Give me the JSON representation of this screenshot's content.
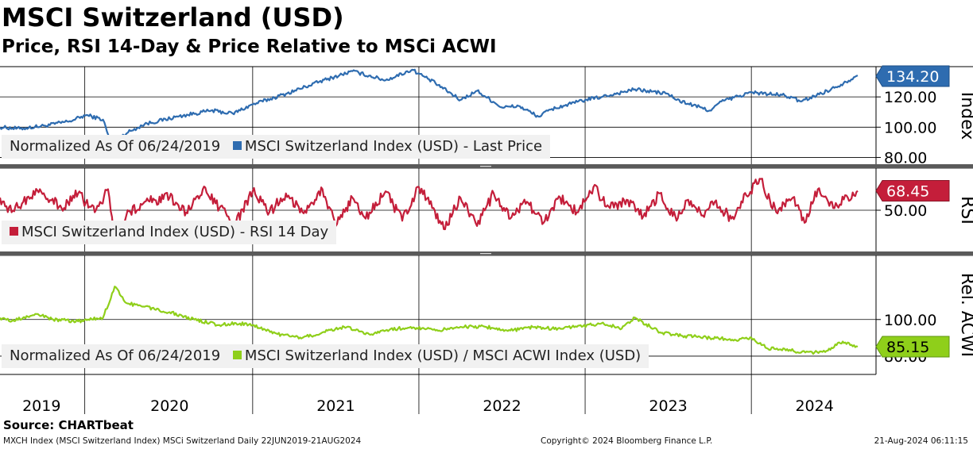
{
  "header": {
    "title": "MSCI Switzerland (USD)",
    "subtitle": "Price, RSI 14-Day & Price Relative to MSCi ACWI"
  },
  "chart_data": [
    {
      "type": "line",
      "panel": "price",
      "axis_label": "Index",
      "ylim": [
        75,
        140
      ],
      "y_ticks": [
        80,
        100,
        120
      ],
      "y_tick_labels": [
        "80.00",
        "100.00",
        "120.00"
      ],
      "last_value_label": "134.20",
      "color": "#2e6cb0",
      "legend_prefix": "Normalized As Of 06/24/2019",
      "series": [
        {
          "name": "MSCI Switzerland Index (USD) - Last Price",
          "x": [
            2019.48,
            2019.6,
            2019.75,
            2019.9,
            2020.0,
            2020.1,
            2020.17,
            2020.22,
            2020.35,
            2020.55,
            2020.75,
            2020.88,
            2021.0,
            2021.2,
            2021.4,
            2021.6,
            2021.8,
            2021.96,
            2022.1,
            2022.25,
            2022.35,
            2022.5,
            2022.6,
            2022.72,
            2022.8,
            2023.0,
            2023.1,
            2023.3,
            2023.5,
            2023.55,
            2023.75,
            2023.82,
            2024.0,
            2024.2,
            2024.3,
            2024.5,
            2024.64
          ],
          "values": [
            100,
            99,
            101,
            104,
            108,
            105,
            82,
            95,
            102,
            107,
            111,
            109,
            115,
            122,
            130,
            137,
            131,
            138,
            129,
            118,
            124,
            113,
            114,
            107,
            112,
            118,
            120,
            125,
            122,
            118,
            111,
            117,
            123,
            121,
            117,
            126,
            134.2
          ]
        }
      ]
    },
    {
      "type": "line",
      "panel": "rsi",
      "axis_label": "RSI",
      "ylim": [
        10,
        90
      ],
      "y_ticks": [
        50
      ],
      "y_tick_labels": [
        "50.00"
      ],
      "last_value_label": "68.45",
      "color": "#c41e3a",
      "series": [
        {
          "name": "MSCI Switzerland Index (USD) - RSI 14 Day",
          "x": [
            2019.48,
            2019.55,
            2019.62,
            2019.72,
            2019.85,
            2019.95,
            2020.05,
            2020.13,
            2020.17,
            2020.24,
            2020.35,
            2020.5,
            2020.6,
            2020.7,
            2020.8,
            2020.9,
            2021.0,
            2021.1,
            2021.2,
            2021.3,
            2021.42,
            2021.5,
            2021.6,
            2021.68,
            2021.8,
            2021.9,
            2022.0,
            2022.08,
            2022.15,
            2022.25,
            2022.35,
            2022.45,
            2022.55,
            2022.65,
            2022.75,
            2022.85,
            2022.95,
            2023.05,
            2023.15,
            2023.25,
            2023.35,
            2023.45,
            2023.55,
            2023.62,
            2023.7,
            2023.78,
            2023.88,
            2023.97,
            2024.05,
            2024.15,
            2024.25,
            2024.32,
            2024.4,
            2024.5,
            2024.58,
            2024.64
          ],
          "values": [
            62,
            48,
            58,
            70,
            52,
            66,
            48,
            70,
            22,
            45,
            58,
            62,
            48,
            70,
            52,
            38,
            68,
            48,
            66,
            48,
            70,
            35,
            62,
            42,
            68,
            40,
            72,
            52,
            32,
            62,
            35,
            66,
            42,
            58,
            38,
            62,
            48,
            72,
            52,
            60,
            44,
            66,
            40,
            60,
            45,
            58,
            42,
            64,
            80,
            48,
            62,
            38,
            70,
            52,
            62,
            68.45
          ]
        }
      ]
    },
    {
      "type": "line",
      "panel": "relative",
      "axis_label": "Rel. ACWI",
      "ylim": [
        70,
        135
      ],
      "y_ticks": [
        80,
        100
      ],
      "y_tick_labels": [
        "80.00",
        "100.00"
      ],
      "last_value_label": "85.15",
      "color": "#8fcf1a",
      "legend_prefix": "Normalized As Of 06/24/2019",
      "series": [
        {
          "name": "MSCI Switzerland Index (USD) / MSCI ACWI Index (USD)",
          "x": [
            2019.48,
            2019.55,
            2019.7,
            2019.8,
            2019.95,
            2020.1,
            2020.17,
            2020.24,
            2020.35,
            2020.5,
            2020.65,
            2020.8,
            2020.9,
            2021.0,
            2021.15,
            2021.3,
            2021.42,
            2021.55,
            2021.7,
            2021.8,
            2021.95,
            2022.1,
            2022.25,
            2022.4,
            2022.55,
            2022.7,
            2022.8,
            2022.95,
            2023.1,
            2023.22,
            2023.3,
            2023.45,
            2023.6,
            2023.75,
            2023.9,
            2024.0,
            2024.1,
            2024.2,
            2024.3,
            2024.38,
            2024.46,
            2024.55,
            2024.64
          ],
          "values": [
            101,
            99,
            103,
            100,
            99,
            101,
            118,
            109,
            107,
            104,
            100,
            97,
            98,
            97,
            92,
            90,
            93,
            96,
            92,
            94,
            96,
            94,
            96,
            96,
            94,
            96,
            95,
            96,
            98,
            95,
            101,
            93,
            91,
            90,
            89,
            90,
            84,
            84,
            82,
            82,
            83,
            88,
            85.15
          ]
        }
      ]
    }
  ],
  "legends": {
    "price_prefix": "Normalized As Of 06/24/2019",
    "price_series": "MSCI Switzerland Index (USD) - Last Price",
    "rsi_series": "MSCI Switzerland Index (USD) - RSI 14 Day",
    "rel_prefix": "Normalized As Of 06/24/2019",
    "rel_series": "MSCI Switzerland Index (USD) / MSCI ACWI Index (USD)"
  },
  "x_axis": {
    "year_labels": [
      "2019",
      "2020",
      "2021",
      "2022",
      "2023",
      "2024"
    ],
    "label_positions": [
      2019.73,
      2020.5,
      2021.5,
      2022.5,
      2023.5,
      2024.38
    ],
    "dividers": [
      2019.99,
      2021.0,
      2022.0,
      2023.0,
      2024.0
    ],
    "x_range": [
      2019.48,
      2024.75
    ]
  },
  "source": "Source: CHARTbeat",
  "footer": {
    "left": "MXCH Index (MSCI Switzerland Index) MSCi Switzerland  Daily 22JUN2019-21AUG2024",
    "center": "Copyright© 2024 Bloomberg Finance L.P.",
    "right": "21-Aug-2024 06:11:15"
  },
  "colors": {
    "price": "#2e6cb0",
    "rsi": "#c41e3a",
    "relative": "#8fcf1a",
    "separator": "#5a5a5a"
  }
}
